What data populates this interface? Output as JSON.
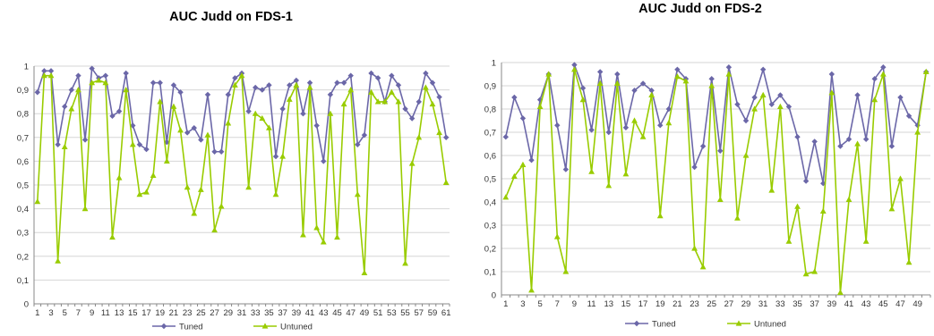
{
  "chart_data": [
    {
      "type": "line",
      "title": "AUC Judd on FDS-1",
      "xlabel": "",
      "ylabel": "",
      "ylim": [
        0,
        1
      ],
      "yticks": [
        "0",
        "0,1",
        "0,2",
        "0,3",
        "0,4",
        "0,5",
        "0,6",
        "0,7",
        "0,8",
        "0,9",
        "1"
      ],
      "xticks": [
        "1",
        "3",
        "5",
        "7",
        "9",
        "11",
        "13",
        "15",
        "17",
        "19",
        "21",
        "23",
        "25",
        "27",
        "29",
        "31",
        "33",
        "35",
        "37",
        "39",
        "41",
        "43",
        "45",
        "47",
        "49",
        "51",
        "53",
        "55",
        "57",
        "59",
        "61"
      ],
      "grid": true,
      "legend": "bottom",
      "x": [
        1,
        2,
        3,
        4,
        5,
        6,
        7,
        8,
        9,
        10,
        11,
        12,
        13,
        14,
        15,
        16,
        17,
        18,
        19,
        20,
        21,
        22,
        23,
        24,
        25,
        26,
        27,
        28,
        29,
        30,
        31,
        32,
        33,
        34,
        35,
        36,
        37,
        38,
        39,
        40,
        41,
        42,
        43,
        44,
        45,
        46,
        47,
        48,
        49,
        50,
        51,
        52,
        53,
        54,
        55,
        56,
        57,
        58,
        59,
        60,
        61
      ],
      "series": [
        {
          "name": "Tuned",
          "color": "#6b67a8",
          "marker": "diamond",
          "values": [
            0.89,
            0.98,
            0.98,
            0.67,
            0.83,
            0.9,
            0.96,
            0.69,
            0.99,
            0.95,
            0.96,
            0.79,
            0.81,
            0.97,
            0.75,
            0.67,
            0.65,
            0.93,
            0.93,
            0.68,
            0.92,
            0.89,
            0.72,
            0.74,
            0.69,
            0.88,
            0.64,
            0.64,
            0.88,
            0.95,
            0.97,
            0.81,
            0.91,
            0.9,
            0.92,
            0.62,
            0.82,
            0.92,
            0.94,
            0.8,
            0.93,
            0.75,
            0.6,
            0.88,
            0.93,
            0.93,
            0.96,
            0.67,
            0.71,
            0.97,
            0.95,
            0.85,
            0.96,
            0.92,
            0.82,
            0.78,
            0.85,
            0.97,
            0.93,
            0.87,
            0.7
          ]
        },
        {
          "name": "Untuned",
          "color": "#99cc00",
          "marker": "triangle",
          "values": [
            0.43,
            0.96,
            0.96,
            0.18,
            0.66,
            0.82,
            0.9,
            0.4,
            0.93,
            0.94,
            0.93,
            0.28,
            0.53,
            0.9,
            0.67,
            0.46,
            0.47,
            0.54,
            0.85,
            0.6,
            0.83,
            0.73,
            0.49,
            0.38,
            0.48,
            0.71,
            0.31,
            0.41,
            0.76,
            0.92,
            0.96,
            0.49,
            0.8,
            0.78,
            0.74,
            0.46,
            0.62,
            0.86,
            0.92,
            0.29,
            0.91,
            0.32,
            0.26,
            0.8,
            0.28,
            0.84,
            0.9,
            0.46,
            0.13,
            0.89,
            0.85,
            0.85,
            0.89,
            0.85,
            0.17,
            0.59,
            0.7,
            0.91,
            0.84,
            0.72,
            0.51
          ]
        }
      ]
    },
    {
      "type": "line",
      "title": "AUC Judd on FDS-2",
      "xlabel": "",
      "ylabel": "",
      "ylim": [
        0,
        1
      ],
      "yticks": [
        "0",
        "0,1",
        "0,2",
        "0,3",
        "0,4",
        "0,5",
        "0,6",
        "0,7",
        "0,8",
        "0,9",
        "1"
      ],
      "xticks": [
        "1",
        "3",
        "5",
        "7",
        "9",
        "11",
        "13",
        "15",
        "17",
        "19",
        "21",
        "23",
        "25",
        "27",
        "29",
        "31",
        "33",
        "35",
        "37",
        "39",
        "41",
        "43",
        "45",
        "47",
        "49"
      ],
      "grid": true,
      "legend": "bottom",
      "x": [
        1,
        2,
        3,
        4,
        5,
        6,
        7,
        8,
        9,
        10,
        11,
        12,
        13,
        14,
        15,
        16,
        17,
        18,
        19,
        20,
        21,
        22,
        23,
        24,
        25,
        26,
        27,
        28,
        29,
        30,
        31,
        32,
        33,
        34,
        35,
        36,
        37,
        38,
        39,
        40,
        41,
        42,
        43,
        44,
        45,
        46,
        47,
        48,
        49,
        50
      ],
      "series": [
        {
          "name": "Tuned",
          "color": "#6b67a8",
          "marker": "diamond",
          "values": [
            0.68,
            0.85,
            0.76,
            0.58,
            0.84,
            0.95,
            0.73,
            0.54,
            0.99,
            0.89,
            0.71,
            0.96,
            0.7,
            0.95,
            0.72,
            0.88,
            0.91,
            0.88,
            0.73,
            0.8,
            0.97,
            0.93,
            0.55,
            0.64,
            0.93,
            0.62,
            0.98,
            0.82,
            0.75,
            0.85,
            0.97,
            0.82,
            0.86,
            0.81,
            0.68,
            0.49,
            0.66,
            0.48,
            0.95,
            0.64,
            0.67,
            0.86,
            0.67,
            0.93,
            0.98,
            0.64,
            0.85,
            0.77,
            0.73,
            0.96
          ]
        },
        {
          "name": "Untuned",
          "color": "#99cc00",
          "marker": "triangle",
          "values": [
            0.42,
            0.51,
            0.56,
            0.02,
            0.81,
            0.95,
            0.25,
            0.1,
            0.97,
            0.84,
            0.53,
            0.91,
            0.47,
            0.91,
            0.52,
            0.75,
            0.68,
            0.86,
            0.34,
            0.74,
            0.94,
            0.92,
            0.2,
            0.12,
            0.9,
            0.41,
            0.95,
            0.33,
            0.6,
            0.8,
            0.86,
            0.45,
            0.81,
            0.23,
            0.38,
            0.09,
            0.1,
            0.36,
            0.87,
            0.01,
            0.41,
            0.65,
            0.23,
            0.84,
            0.95,
            0.37,
            0.5,
            0.14,
            0.7,
            0.96
          ]
        }
      ]
    }
  ]
}
